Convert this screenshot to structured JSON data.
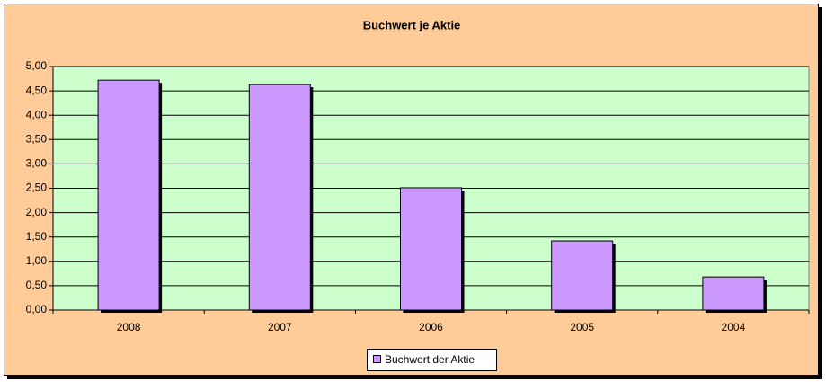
{
  "chart_data": {
    "type": "bar",
    "title": "Buchwert je Aktie",
    "categories": [
      "2008",
      "2007",
      "2006",
      "2005",
      "2004"
    ],
    "series": [
      {
        "name": "Buchwert der Aktie",
        "color": "#cc99ff",
        "values": [
          4.72,
          4.63,
          2.51,
          1.42,
          0.68
        ]
      }
    ],
    "ylim": [
      0,
      5
    ],
    "yticks": [
      {
        "value": 0,
        "label": "0,00"
      },
      {
        "value": 0.5,
        "label": "0,50"
      },
      {
        "value": 1,
        "label": "1,00"
      },
      {
        "value": 1.5,
        "label": "1,50"
      },
      {
        "value": 2,
        "label": "2,00"
      },
      {
        "value": 2.5,
        "label": "2,50"
      },
      {
        "value": 3,
        "label": "3,00"
      },
      {
        "value": 3.5,
        "label": "3,50"
      },
      {
        "value": 4,
        "label": "4,00"
      },
      {
        "value": 4.5,
        "label": "4,50"
      },
      {
        "value": 5,
        "label": "5,00"
      }
    ],
    "grid": true,
    "legend": "bottom"
  }
}
